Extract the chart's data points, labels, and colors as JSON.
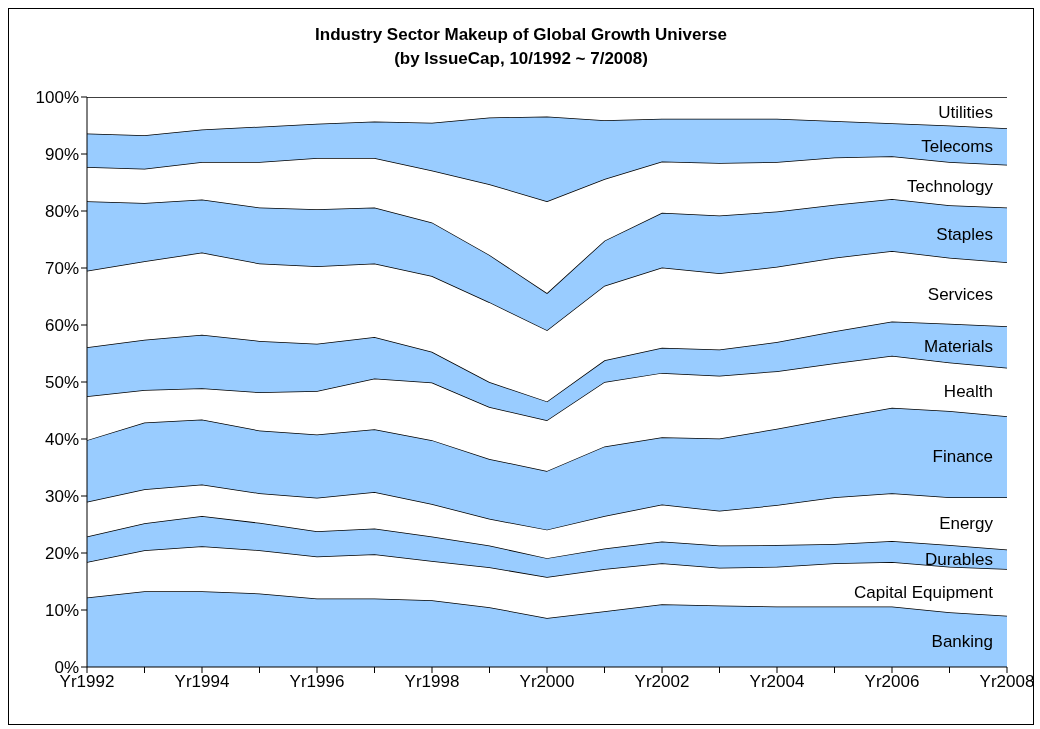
{
  "chart_data": {
    "type": "area",
    "stacked": true,
    "title": "Industry Sector Makeup of Global Growth Universe",
    "subtitle": "(by IssueCap, 10/1992 ~ 7/2008)",
    "categories": [
      "Yr1992",
      null,
      "Yr1994",
      null,
      "Yr1996",
      null,
      "Yr1998",
      null,
      "Yr2000",
      null,
      "Yr2002",
      null,
      "Yr2004",
      null,
      "Yr2006",
      null,
      "Yr2008"
    ],
    "ylim": [
      0,
      100
    ],
    "yticks": [
      {
        "value": 0,
        "label": "0%"
      },
      {
        "value": 10,
        "label": "10%"
      },
      {
        "value": 20,
        "label": "20%"
      },
      {
        "value": 30,
        "label": "30%"
      },
      {
        "value": 40,
        "label": "40%"
      },
      {
        "value": 50,
        "label": "50%"
      },
      {
        "value": 60,
        "label": "60%"
      },
      {
        "value": 70,
        "label": "70%"
      },
      {
        "value": 80,
        "label": "80%"
      },
      {
        "value": 90,
        "label": "90%"
      },
      {
        "value": 100,
        "label": "100%"
      }
    ],
    "grid": false,
    "legend": false,
    "series": [
      {
        "name": "Banking",
        "color": "#99ccff",
        "values": [
          12.2,
          13.3,
          13.3,
          12.9,
          12.0,
          12.0,
          11.7,
          10.5,
          8.6,
          9.8,
          11.0,
          10.8,
          10.6,
          10.6,
          10.6,
          9.6,
          9.0
        ]
      },
      {
        "name": "Capital Equipment",
        "color": "#ffffff",
        "values": [
          6.2,
          7.2,
          7.9,
          7.6,
          7.4,
          7.8,
          6.9,
          7.0,
          7.2,
          7.4,
          7.2,
          6.6,
          7.0,
          7.6,
          7.8,
          8.0,
          8.2
        ]
      },
      {
        "name": "Durables",
        "color": "#99ccff",
        "values": [
          4.5,
          4.7,
          5.3,
          4.8,
          4.4,
          4.5,
          4.3,
          3.8,
          3.3,
          3.6,
          3.8,
          3.9,
          3.8,
          3.4,
          3.7,
          3.8,
          3.4
        ]
      },
      {
        "name": "Energy",
        "color": "#ffffff",
        "values": [
          6.1,
          6.0,
          5.5,
          5.2,
          5.9,
          6.4,
          5.7,
          4.7,
          5.0,
          5.7,
          6.5,
          6.1,
          7.0,
          8.2,
          8.4,
          8.4,
          9.2
        ]
      },
      {
        "name": "Finance",
        "color": "#99ccff",
        "values": [
          10.8,
          11.7,
          11.4,
          11.0,
          11.1,
          11.0,
          11.2,
          10.5,
          10.3,
          12.2,
          11.8,
          12.7,
          13.4,
          13.9,
          15.0,
          15.1,
          14.2
        ]
      },
      {
        "name": "Health",
        "color": "#ffffff",
        "values": [
          7.7,
          5.7,
          5.5,
          6.7,
          7.6,
          8.9,
          10.1,
          9.1,
          8.9,
          11.3,
          11.3,
          11.0,
          10.1,
          9.6,
          9.1,
          8.5,
          8.5
        ]
      },
      {
        "name": "Materials",
        "color": "#99ccff",
        "values": [
          8.6,
          8.8,
          9.4,
          9.0,
          8.3,
          7.3,
          5.4,
          4.4,
          3.3,
          3.8,
          4.4,
          4.6,
          5.1,
          5.6,
          6.0,
          6.8,
          7.3
        ]
      },
      {
        "name": "Services",
        "color": "#ffffff",
        "values": [
          13.4,
          13.8,
          14.4,
          13.6,
          13.6,
          12.9,
          13.3,
          14.0,
          12.5,
          13.1,
          14.1,
          13.4,
          13.2,
          12.9,
          12.4,
          11.6,
          11.2
        ]
      },
      {
        "name": "Staples",
        "color": "#99ccff",
        "values": [
          12.2,
          10.2,
          9.3,
          9.8,
          10.0,
          9.8,
          9.4,
          8.3,
          6.5,
          7.9,
          9.6,
          10.1,
          9.7,
          9.3,
          9.1,
          9.2,
          9.6
        ]
      },
      {
        "name": "Technology",
        "color": "#ffffff",
        "values": [
          6.0,
          6.0,
          6.6,
          8.0,
          9.0,
          8.7,
          9.1,
          12.4,
          16.1,
          10.8,
          9.0,
          9.2,
          8.7,
          8.3,
          7.5,
          7.6,
          7.5
        ]
      },
      {
        "name": "Telecoms",
        "color": "#99ccff",
        "values": [
          5.9,
          5.9,
          5.7,
          6.2,
          6.0,
          6.4,
          8.4,
          11.7,
          14.9,
          10.3,
          7.5,
          7.8,
          7.6,
          6.4,
          5.8,
          6.4,
          6.4
        ]
      },
      {
        "name": "Utilities",
        "color": "#ffffff",
        "values": [
          6.4,
          6.7,
          5.7,
          5.2,
          4.7,
          4.3,
          4.5,
          3.6,
          3.4,
          4.1,
          3.8,
          3.8,
          3.8,
          4.2,
          4.6,
          5.0,
          5.5
        ]
      }
    ]
  }
}
